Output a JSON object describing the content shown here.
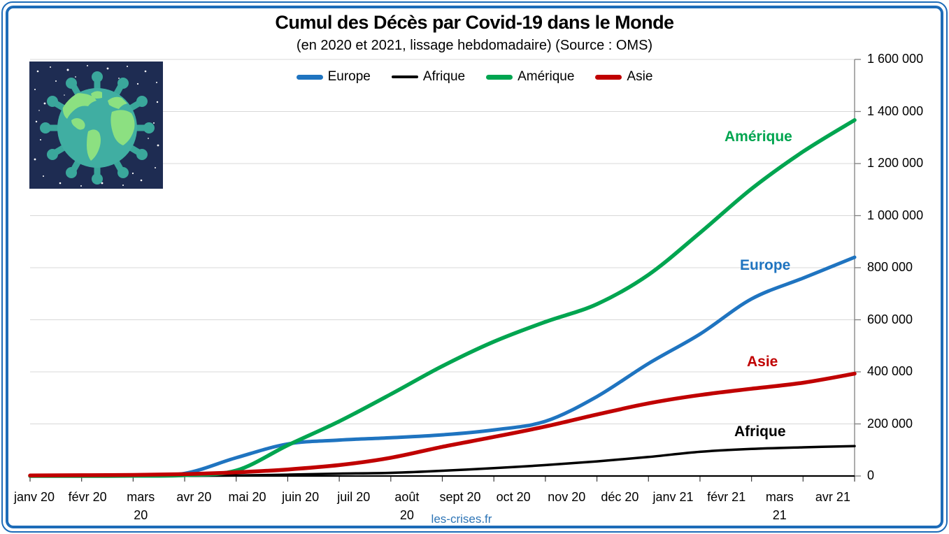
{
  "header": {
    "title": "Cumul des Décès par Covid-19 dans le Monde",
    "subtitle": "(en 2020 et 2021, lissage hebdomadaire) (Source : OMS)"
  },
  "watermark": "les-crises.fr",
  "virus_globe_image": "globe-virus-illustration",
  "colors": {
    "frame_border": "#1C6BB8",
    "gridline": "#D8D8D8",
    "axis": "#000000",
    "right_axis": "#808080",
    "watermark_blue": "#2E75B6"
  },
  "chart_data": {
    "type": "line",
    "title": "Cumul des Décès par Covid-19 dans le Monde",
    "subtitle": "(en 2020 et 2021, lissage hebdomadaire) (Source : OMS)",
    "legend_position": "top-center",
    "grid": "horizontal",
    "ylim": [
      0,
      1600000
    ],
    "y_ticks": [
      0,
      200000,
      400000,
      600000,
      800000,
      1000000,
      1200000,
      1400000,
      1600000
    ],
    "y_tick_labels": [
      "0",
      "200 000",
      "400 000",
      "600 000",
      "800 000",
      "1 000 000",
      "1 200 000",
      "1 400 000",
      "1 600 000"
    ],
    "x_tick_labels": [
      [
        "janv 20"
      ],
      [
        "févr 20"
      ],
      [
        "mars",
        "20"
      ],
      [
        "avr 20"
      ],
      [
        "mai 20"
      ],
      [
        "juin 20"
      ],
      [
        "juil 20"
      ],
      [
        "août",
        "20"
      ],
      [
        "sept 20"
      ],
      [
        "oct 20"
      ],
      [
        "nov 20"
      ],
      [
        "déc 20"
      ],
      [
        "janv 21"
      ],
      [
        "févr 21"
      ],
      [
        "mars",
        "21"
      ],
      [
        "avr 21"
      ]
    ],
    "x_note": "17 points mensuels : du 1er janv 2020 au bord droit (mi-avril 2021), le dernier point n'a pas d'étiquette d'axe",
    "points_per_series": 17,
    "series": [
      {
        "name": "Europe",
        "color": "#1F74C0",
        "values": [
          0,
          200,
          2000,
          10000,
          70000,
          123000,
          138000,
          147000,
          158000,
          177000,
          210000,
          305000,
          432000,
          545000,
          680000,
          760000,
          840000
        ]
      },
      {
        "name": "Afrique",
        "color": "#000000",
        "values": [
          0,
          0,
          100,
          500,
          2000,
          5000,
          9000,
          12000,
          20000,
          30000,
          42000,
          56000,
          73000,
          93000,
          104000,
          110000,
          115000
        ]
      },
      {
        "name": "Amérique",
        "color": "#00A550",
        "values": [
          0,
          0,
          500,
          3000,
          21000,
          118000,
          210000,
          314000,
          422000,
          516000,
          592000,
          660000,
          773000,
          934000,
          1103000,
          1246000,
          1367000
        ]
      },
      {
        "name": "Asie",
        "color": "#C00000",
        "values": [
          2000,
          3000,
          4000,
          7000,
          14000,
          25000,
          42000,
          70000,
          112000,
          150000,
          190000,
          236000,
          279000,
          311000,
          335000,
          358000,
          393000
        ]
      }
    ]
  }
}
